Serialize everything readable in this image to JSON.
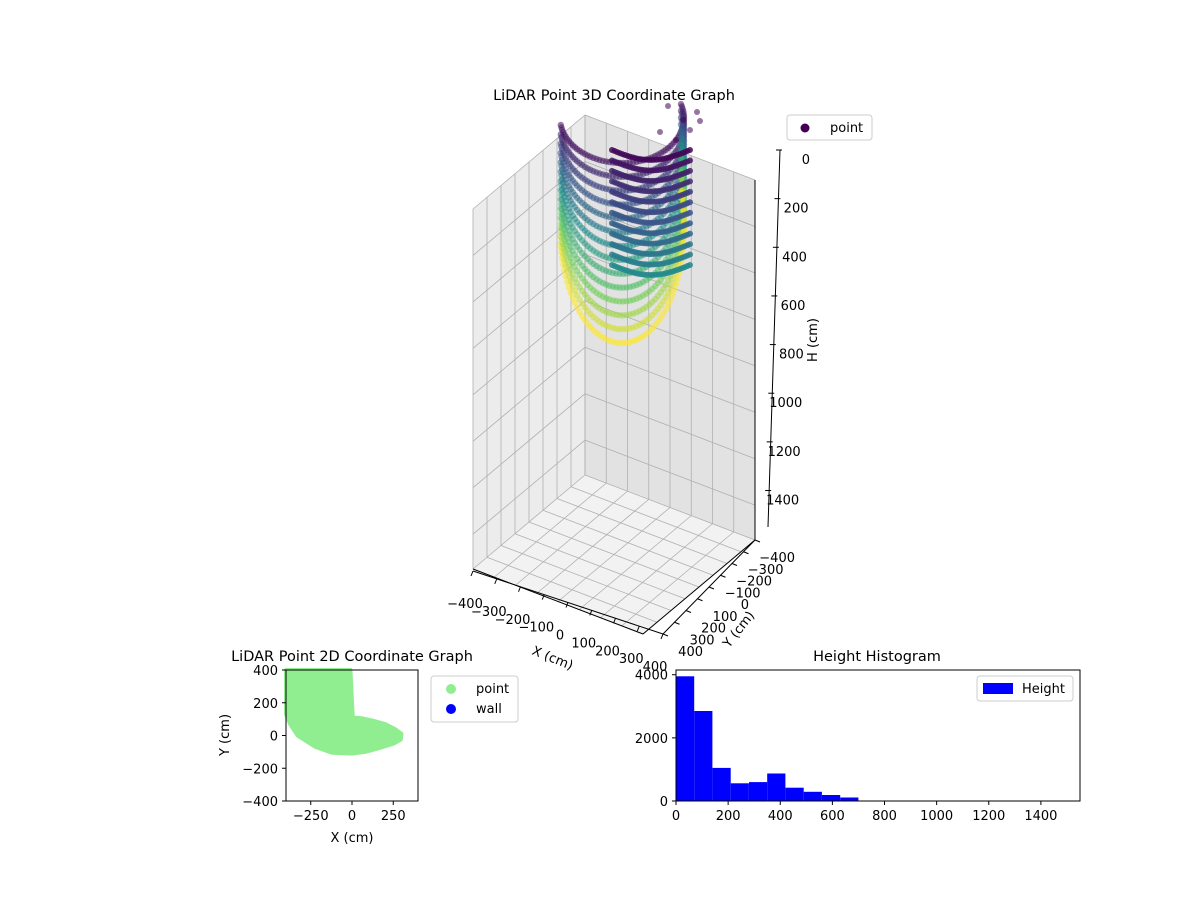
{
  "chart_data": [
    {
      "type": "scatter3d",
      "title": "LiDAR Point 3D Coordinate Graph",
      "xlabel": "X (cm)",
      "ylabel": "Y (cm)",
      "zlabel": "H (cm)",
      "xlim": [
        -400,
        400
      ],
      "ylim": [
        -400,
        400
      ],
      "zlim": [
        0,
        1550
      ],
      "z_inverted": true,
      "xticks": [
        "−400",
        "−300",
        "−200",
        "−100",
        "0",
        "100",
        "200",
        "300",
        "400"
      ],
      "yticks": [
        "−400",
        "−300",
        "−200",
        "−100",
        "0",
        "100",
        "200",
        "300",
        "400"
      ],
      "zticks": [
        "0",
        "200",
        "400",
        "600",
        "800",
        "1000",
        "1200",
        "1400"
      ],
      "legend": {
        "entries": [
          "point"
        ],
        "placement": "upper-right",
        "color": "#440154"
      },
      "colormap": "viridis",
      "colormap_stops": [
        "#440154",
        "#3b528b",
        "#21918c",
        "#5ec962",
        "#fde725"
      ],
      "grid": true
    },
    {
      "type": "scatter",
      "title": "LiDAR Point 2D Coordinate Graph",
      "xlabel": "X (cm)",
      "ylabel": "Y (cm)",
      "xlim": [
        -400,
        400
      ],
      "ylim": [
        -400,
        400
      ],
      "xticks": [
        "−250",
        "0",
        "250"
      ],
      "yticks": [
        "400",
        "200",
        "0",
        "−200",
        "−400"
      ],
      "legend": {
        "placement": "outside-right",
        "entries": [
          {
            "name": "point",
            "color": "#90ee90"
          },
          {
            "name": "wall",
            "color": "#0000ff"
          }
        ]
      },
      "point_region_outline": [
        [
          -400,
          400
        ],
        [
          -10,
          400
        ],
        [
          -5,
          310
        ],
        [
          0,
          200
        ],
        [
          5,
          110
        ],
        [
          60,
          105
        ],
        [
          130,
          90
        ],
        [
          200,
          70
        ],
        [
          260,
          40
        ],
        [
          300,
          10
        ],
        [
          295,
          -25
        ],
        [
          250,
          -50
        ],
        [
          170,
          -75
        ],
        [
          80,
          -100
        ],
        [
          0,
          -110
        ],
        [
          -120,
          -105
        ],
        [
          -220,
          -70
        ],
        [
          -330,
          0
        ],
        [
          -375,
          70
        ],
        [
          -400,
          130
        ]
      ]
    },
    {
      "type": "histogram",
      "title": "Height Histogram",
      "xlabel": "",
      "ylabel": "",
      "xlim": [
        0,
        1550
      ],
      "ylim": [
        0,
        4150
      ],
      "xticks": [
        "0",
        "200",
        "400",
        "600",
        "800",
        "1000",
        "1200",
        "1400"
      ],
      "yticks": [
        "0",
        "2000",
        "4000"
      ],
      "bin_width": 70,
      "bins": [
        0,
        70,
        140,
        210,
        280,
        350,
        420,
        490,
        560,
        630
      ],
      "values": [
        3950,
        2850,
        1050,
        560,
        600,
        870,
        420,
        290,
        190,
        110
      ],
      "color": "#0000ff",
      "legend": {
        "entries": [
          "Height"
        ],
        "placement": "upper-right"
      }
    }
  ]
}
